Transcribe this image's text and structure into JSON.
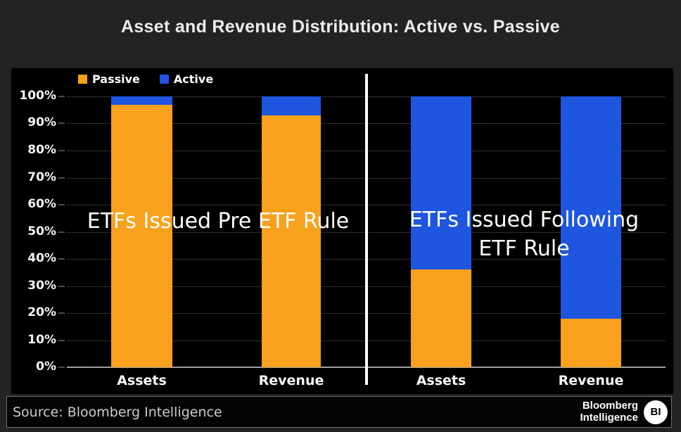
{
  "title": "Asset and Revenue Distribution: Active vs. Passive",
  "chart_data": {
    "type": "bar",
    "stacked": true,
    "title": "Asset and Revenue Distribution: Active vs. Passive",
    "unit": "percent",
    "ylim": [
      0,
      100
    ],
    "yticks": [
      "100%",
      "90%",
      "80%",
      "70%",
      "60%",
      "50%",
      "40%",
      "30%",
      "20%",
      "10%",
      "0%"
    ],
    "grid": true,
    "legend_position": "top-left",
    "legend": [
      {
        "label": "Passive",
        "color": "#F7A11C"
      },
      {
        "label": "Active",
        "color": "#1E56E0"
      }
    ],
    "groups": [
      {
        "annotation": "ETFs Issued Pre ETF Rule",
        "categories": [
          "Assets",
          "Revenue"
        ],
        "series": [
          {
            "name": "Passive",
            "values": [
              97,
              93
            ]
          },
          {
            "name": "Active",
            "values": [
              3,
              7
            ]
          }
        ]
      },
      {
        "annotation": "ETFs Issued Following ETF Rule",
        "categories": [
          "Assets",
          "Revenue"
        ],
        "series": [
          {
            "name": "Passive",
            "values": [
              36,
              18
            ]
          },
          {
            "name": "Active",
            "values": [
              64,
              82
            ]
          }
        ]
      }
    ],
    "annotations": [
      {
        "lines": [
          "ETFs Issued Pre ETF Rule"
        ]
      },
      {
        "lines": [
          "ETFs Issued Following",
          "ETF Rule"
        ]
      }
    ]
  },
  "source_bar": {
    "source_text": "Source: Bloomberg Intelligence",
    "brand_line1": "Bloomberg",
    "brand_line2": "Intelligence",
    "brand_badge": "BI"
  },
  "colors": {
    "passive": "#F7A11C",
    "active": "#1E56E0",
    "background": "#232323",
    "panel": "#000000",
    "gridline": "#2e2e2e",
    "baseline": "#9f9f9f",
    "divider": "#FFFFFF"
  }
}
